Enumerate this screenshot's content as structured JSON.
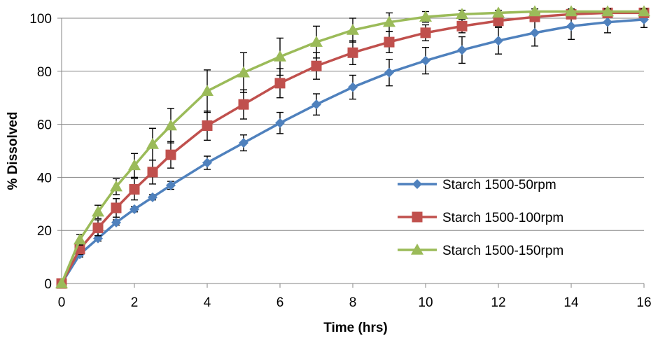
{
  "chart_data": {
    "type": "line",
    "title": "",
    "xlabel": "Time (hrs)",
    "ylabel": "% Dissolved",
    "xlim": [
      0,
      16
    ],
    "ylim": [
      0,
      100
    ],
    "xticks": [
      0,
      2,
      4,
      6,
      8,
      10,
      12,
      14,
      16
    ],
    "yticks": [
      0,
      20,
      40,
      60,
      80,
      100
    ],
    "grid": "horizontal",
    "legend_position": "right",
    "x": [
      0,
      0.5,
      1,
      1.5,
      2,
      2.5,
      3,
      4,
      5,
      6,
      7,
      8,
      9,
      10,
      11,
      12,
      13,
      14,
      15,
      16
    ],
    "series": [
      {
        "name": "Starch 1500-50rpm",
        "color": "#4f81bd",
        "marker": "diamond",
        "values": [
          0,
          11,
          17,
          23,
          28,
          32.5,
          37,
          45.5,
          53,
          60.5,
          67.5,
          74,
          79.5,
          84,
          88,
          91.5,
          94.5,
          97,
          98.5,
          99.5
        ],
        "errors": [
          0,
          1,
          1,
          1,
          1,
          1,
          1.5,
          2.5,
          3,
          4,
          4,
          4.5,
          5,
          5,
          5,
          5,
          5,
          5,
          4,
          3
        ]
      },
      {
        "name": "Starch 1500-100rpm",
        "color": "#c0504d",
        "marker": "square",
        "values": [
          0,
          13,
          21,
          28.5,
          35.5,
          42,
          48.5,
          59.5,
          67.5,
          75.5,
          82,
          87,
          91,
          94.5,
          97,
          99,
          100.5,
          101.5,
          102,
          102
        ],
        "errors": [
          0,
          2,
          3,
          3.5,
          4,
          4.5,
          5,
          5.5,
          5.5,
          5.5,
          5,
          4.5,
          4,
          3,
          2.5,
          2,
          1.5,
          1,
          1,
          1
        ]
      },
      {
        "name": "Starch 1500-150rpm",
        "color": "#9bbb59",
        "marker": "triangle",
        "values": [
          0,
          16.5,
          27,
          36.5,
          44.5,
          52.5,
          59.5,
          72.5,
          79.5,
          85.5,
          91,
          95.5,
          98.5,
          100.5,
          101.5,
          102,
          102.5,
          102.5,
          102.5,
          102.5
        ],
        "errors": [
          0,
          2,
          2.5,
          3,
          4.5,
          6,
          6.5,
          8,
          7.5,
          7,
          6,
          4.5,
          3.5,
          2,
          1.5,
          1,
          1,
          1,
          1,
          1
        ]
      }
    ]
  }
}
